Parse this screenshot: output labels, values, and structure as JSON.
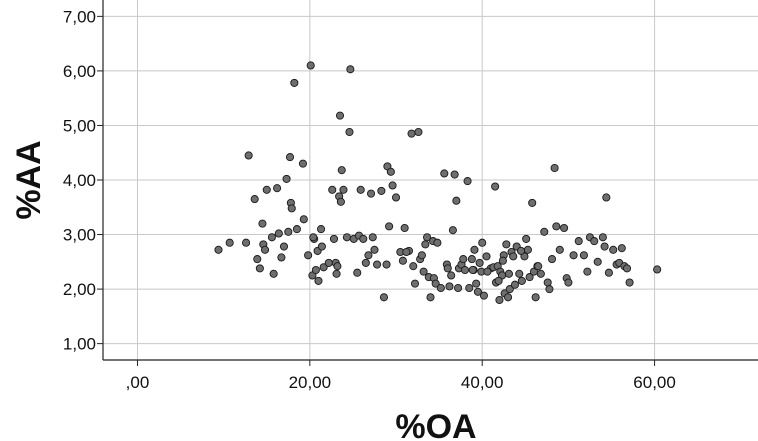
{
  "chart_data": {
    "type": "scatter",
    "title": "",
    "xlabel": "%OA",
    "ylabel": "%AA",
    "xlim": [
      -4,
      72
    ],
    "ylim": [
      0.7,
      7.3
    ],
    "x_ticks": [
      0,
      20,
      40,
      60
    ],
    "x_tick_labels": [
      ",00",
      "20,00",
      "40,00",
      "60,00"
    ],
    "y_ticks": [
      1,
      2,
      3,
      4,
      5,
      6,
      7
    ],
    "y_tick_labels": [
      "1,00",
      "2,00",
      "3,00",
      "4,00",
      "5,00",
      "6,00",
      "7,00"
    ],
    "grid": true,
    "legend": "none",
    "marker_color": "#6e6e6e",
    "marker_edge_color": "#1a1a1a",
    "grid_color": "#c8c8c8",
    "points": [
      [
        9.4,
        2.72
      ],
      [
        10.7,
        2.85
      ],
      [
        12.6,
        2.85
      ],
      [
        12.9,
        4.45
      ],
      [
        13.6,
        3.65
      ],
      [
        13.9,
        2.55
      ],
      [
        14.2,
        2.38
      ],
      [
        14.5,
        3.2
      ],
      [
        14.6,
        2.82
      ],
      [
        14.8,
        2.72
      ],
      [
        15.0,
        3.82
      ],
      [
        15.6,
        2.95
      ],
      [
        15.8,
        2.28
      ],
      [
        16.2,
        3.85
      ],
      [
        16.4,
        3.02
      ],
      [
        16.7,
        2.58
      ],
      [
        17.0,
        2.78
      ],
      [
        17.3,
        4.02
      ],
      [
        17.5,
        3.05
      ],
      [
        17.7,
        4.42
      ],
      [
        17.8,
        3.58
      ],
      [
        17.9,
        3.48
      ],
      [
        18.2,
        5.78
      ],
      [
        18.5,
        3.1
      ],
      [
        19.2,
        4.3
      ],
      [
        19.3,
        3.28
      ],
      [
        19.8,
        2.62
      ],
      [
        20.1,
        6.1
      ],
      [
        20.3,
        2.25
      ],
      [
        20.5,
        2.92
      ],
      [
        20.7,
        2.35
      ],
      [
        20.9,
        2.7
      ],
      [
        21.0,
        2.15
      ],
      [
        21.3,
        3.1
      ],
      [
        21.4,
        2.78
      ],
      [
        21.6,
        2.4
      ],
      [
        22.6,
        3.82
      ],
      [
        22.8,
        2.92
      ],
      [
        23.0,
        2.48
      ],
      [
        23.1,
        2.28
      ],
      [
        23.2,
        2.42
      ],
      [
        23.4,
        3.7
      ],
      [
        23.5,
        5.18
      ],
      [
        23.6,
        3.6
      ],
      [
        23.7,
        4.18
      ],
      [
        24.3,
        2.95
      ],
      [
        24.6,
        4.88
      ],
      [
        24.7,
        6.03
      ],
      [
        25.1,
        2.92
      ],
      [
        25.5,
        2.3
      ],
      [
        25.7,
        2.98
      ],
      [
        25.9,
        3.82
      ],
      [
        26.2,
        2.92
      ],
      [
        26.5,
        2.48
      ],
      [
        26.8,
        2.62
      ],
      [
        27.1,
        3.75
      ],
      [
        27.3,
        2.95
      ],
      [
        27.5,
        2.72
      ],
      [
        28.3,
        3.8
      ],
      [
        28.6,
        1.85
      ],
      [
        28.9,
        2.45
      ],
      [
        29.0,
        4.25
      ],
      [
        29.2,
        3.15
      ],
      [
        29.4,
        4.15
      ],
      [
        29.6,
        3.9
      ],
      [
        30.0,
        3.68
      ],
      [
        30.5,
        2.68
      ],
      [
        31.0,
        3.12
      ],
      [
        31.5,
        2.7
      ],
      [
        31.8,
        4.85
      ],
      [
        32.0,
        2.42
      ],
      [
        32.2,
        2.1
      ],
      [
        32.6,
        4.88
      ],
      [
        32.8,
        2.55
      ],
      [
        33.0,
        2.62
      ],
      [
        33.2,
        2.32
      ],
      [
        33.4,
        2.82
      ],
      [
        33.6,
        2.95
      ],
      [
        33.8,
        2.22
      ],
      [
        34.0,
        1.85
      ],
      [
        34.3,
        2.88
      ],
      [
        34.4,
        2.2
      ],
      [
        34.6,
        2.1
      ],
      [
        34.8,
        2.85
      ],
      [
        35.6,
        4.12
      ],
      [
        35.9,
        2.45
      ],
      [
        36.0,
        2.38
      ],
      [
        36.2,
        2.05
      ],
      [
        36.6,
        3.08
      ],
      [
        36.8,
        4.1
      ],
      [
        37.0,
        3.62
      ],
      [
        37.2,
        2.02
      ],
      [
        37.3,
        2.38
      ],
      [
        37.6,
        2.45
      ],
      [
        37.8,
        2.55
      ],
      [
        38.0,
        2.35
      ],
      [
        38.3,
        3.98
      ],
      [
        38.5,
        2.02
      ],
      [
        38.8,
        2.55
      ],
      [
        39.0,
        2.35
      ],
      [
        39.1,
        2.72
      ],
      [
        39.3,
        2.1
      ],
      [
        39.5,
        1.95
      ],
      [
        39.7,
        2.48
      ],
      [
        39.9,
        2.32
      ],
      [
        40.0,
        2.85
      ],
      [
        40.2,
        1.88
      ],
      [
        40.5,
        2.6
      ],
      [
        41.0,
        2.38
      ],
      [
        41.3,
        2.4
      ],
      [
        41.5,
        3.88
      ],
      [
        41.6,
        2.12
      ],
      [
        41.8,
        2.42
      ],
      [
        42.0,
        1.8
      ],
      [
        42.1,
        2.32
      ],
      [
        42.3,
        2.25
      ],
      [
        42.5,
        2.62
      ],
      [
        42.6,
        1.92
      ],
      [
        42.8,
        2.82
      ],
      [
        43.0,
        1.85
      ],
      [
        43.2,
        2.0
      ],
      [
        43.4,
        2.68
      ],
      [
        43.6,
        2.6
      ],
      [
        43.8,
        2.08
      ],
      [
        44.0,
        2.78
      ],
      [
        44.3,
        2.28
      ],
      [
        44.6,
        2.15
      ],
      [
        44.9,
        2.6
      ],
      [
        45.1,
        2.92
      ],
      [
        45.3,
        2.72
      ],
      [
        45.5,
        2.22
      ],
      [
        45.8,
        3.58
      ],
      [
        46.0,
        2.32
      ],
      [
        46.2,
        1.85
      ],
      [
        46.4,
        2.42
      ],
      [
        46.8,
        2.28
      ],
      [
        47.2,
        3.05
      ],
      [
        47.6,
        2.12
      ],
      [
        47.8,
        2.0
      ],
      [
        48.1,
        2.55
      ],
      [
        48.4,
        4.22
      ],
      [
        48.6,
        3.15
      ],
      [
        49.0,
        2.72
      ],
      [
        49.5,
        3.12
      ],
      [
        49.8,
        2.2
      ],
      [
        50.0,
        2.12
      ],
      [
        51.2,
        2.88
      ],
      [
        51.8,
        2.62
      ],
      [
        52.5,
        2.95
      ],
      [
        53.0,
        2.88
      ],
      [
        53.4,
        2.5
      ],
      [
        54.0,
        2.95
      ],
      [
        54.2,
        2.78
      ],
      [
        54.4,
        3.68
      ],
      [
        54.7,
        2.3
      ],
      [
        55.2,
        2.72
      ],
      [
        55.6,
        2.45
      ],
      [
        55.9,
        2.48
      ],
      [
        56.2,
        2.75
      ],
      [
        56.5,
        2.42
      ],
      [
        56.8,
        2.38
      ],
      [
        57.1,
        2.12
      ],
      [
        60.3,
        2.36
      ],
      [
        20.4,
        2.95
      ],
      [
        22.2,
        2.48
      ],
      [
        23.9,
        3.82
      ],
      [
        27.8,
        2.45
      ],
      [
        30.8,
        2.52
      ],
      [
        31.2,
        2.68
      ],
      [
        35.2,
        2.02
      ],
      [
        36.4,
        2.25
      ],
      [
        38.9,
        2.35
      ],
      [
        40.6,
        2.32
      ],
      [
        43.1,
        2.28
      ],
      [
        44.5,
        2.7
      ],
      [
        46.5,
        2.42
      ],
      [
        50.6,
        2.62
      ],
      [
        52.2,
        2.32
      ],
      [
        42.4,
        2.52
      ],
      [
        41.9,
        2.15
      ]
    ]
  }
}
